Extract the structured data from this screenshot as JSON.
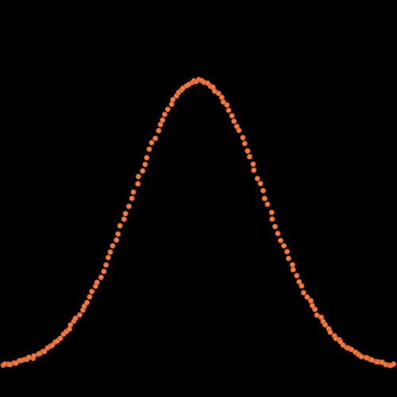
{
  "chart_data": {
    "type": "scatter",
    "title": "",
    "xlabel": "",
    "ylabel": "",
    "axes_visible": false,
    "grid": false,
    "legend": "none",
    "background_color": "#000000",
    "marker_color": "#f47c3c",
    "marker_edge_color": "#c4562a",
    "xlim": [
      -3.05,
      3.05
    ],
    "ylim": [
      -0.1,
      1.28
    ],
    "series": [
      {
        "shape": "gaussian bell curve, y = exp(-x^2/2)",
        "x_range": [
          -3.0,
          3.0
        ],
        "point_count": 150,
        "peak_y": 1.0,
        "tail_y": 0.011
      }
    ]
  }
}
